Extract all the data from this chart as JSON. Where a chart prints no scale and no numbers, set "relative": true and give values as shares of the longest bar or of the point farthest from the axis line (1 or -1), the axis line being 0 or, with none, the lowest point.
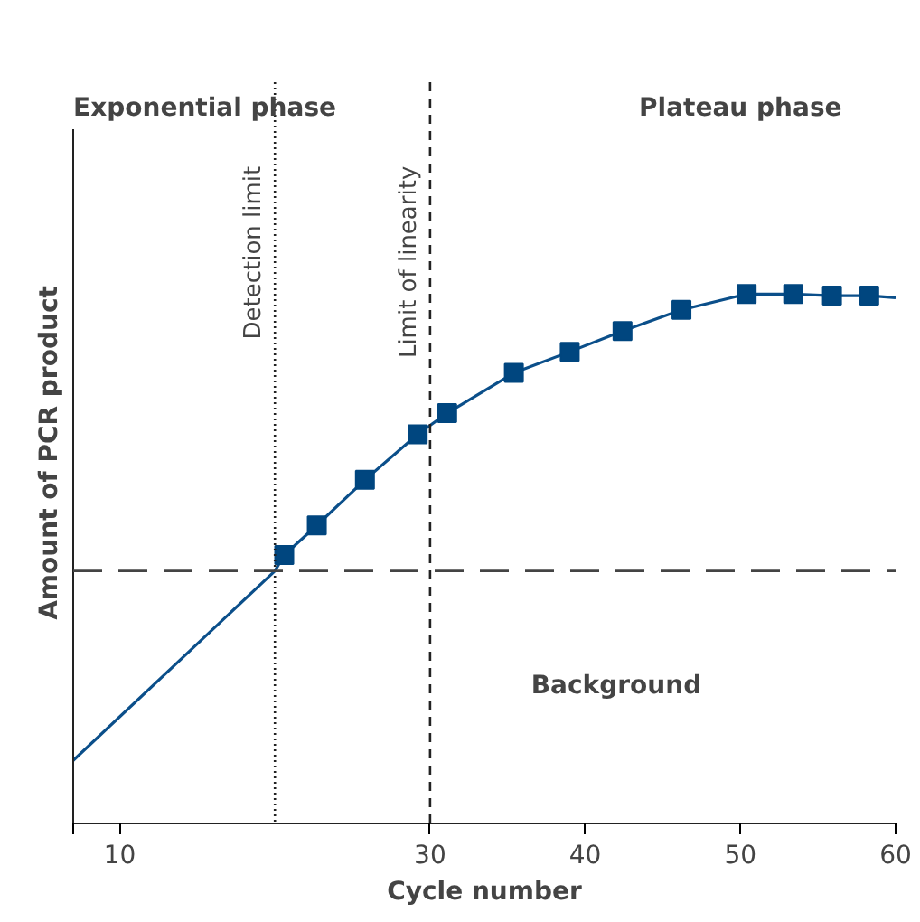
{
  "chart_data": {
    "type": "line",
    "relative": true,
    "xlabel": "Cycle number",
    "ylabel": "Amount of PCR product",
    "xlim": [
      7,
      60
    ],
    "xticks": [
      {
        "value": 7,
        "label": null
      },
      10,
      30,
      40,
      50,
      60
    ],
    "series": [
      {
        "color": "#0b4f8a",
        "x": [
          7,
          20,
          20.6,
          22.7,
          25.8,
          29.2,
          31.1,
          35.4,
          39.0,
          42.4,
          46.2,
          50.4,
          53.4,
          55.9,
          58.3,
          60
        ],
        "values": [
          0.119,
          0.477,
          0.507,
          0.563,
          0.649,
          0.735,
          0.775,
          0.851,
          0.891,
          0.93,
          0.97,
          1.0,
          1.0,
          0.997,
          0.997,
          0.993
        ],
        "marker": "none"
      },
      {
        "type": "scatter",
        "color": "#00467f",
        "marker": "square",
        "x": [
          20.6,
          22.7,
          25.8,
          29.2,
          31.1,
          35.4,
          39.0,
          42.4,
          46.2,
          50.4,
          53.4,
          55.9,
          58.3
        ],
        "values": [
          0.507,
          0.563,
          0.649,
          0.735,
          0.775,
          0.851,
          0.891,
          0.93,
          0.97,
          1.0,
          1.0,
          0.997,
          0.997
        ]
      }
    ],
    "ref_lines": [
      {
        "axis": "x",
        "value": 20,
        "label": "Detection limit",
        "line_style": "dotted",
        "color": "#222222"
      },
      {
        "axis": "x",
        "value": 30,
        "label": "Limit of linearity",
        "line_style": "dashed",
        "color": "#222222"
      },
      {
        "axis": "y",
        "value": 0.477,
        "label": null,
        "line_style": "dashed",
        "color": "#444444"
      }
    ],
    "annotations": [
      "Exponential phase",
      "Plateau phase",
      "Background"
    ],
    "grid": false
  }
}
